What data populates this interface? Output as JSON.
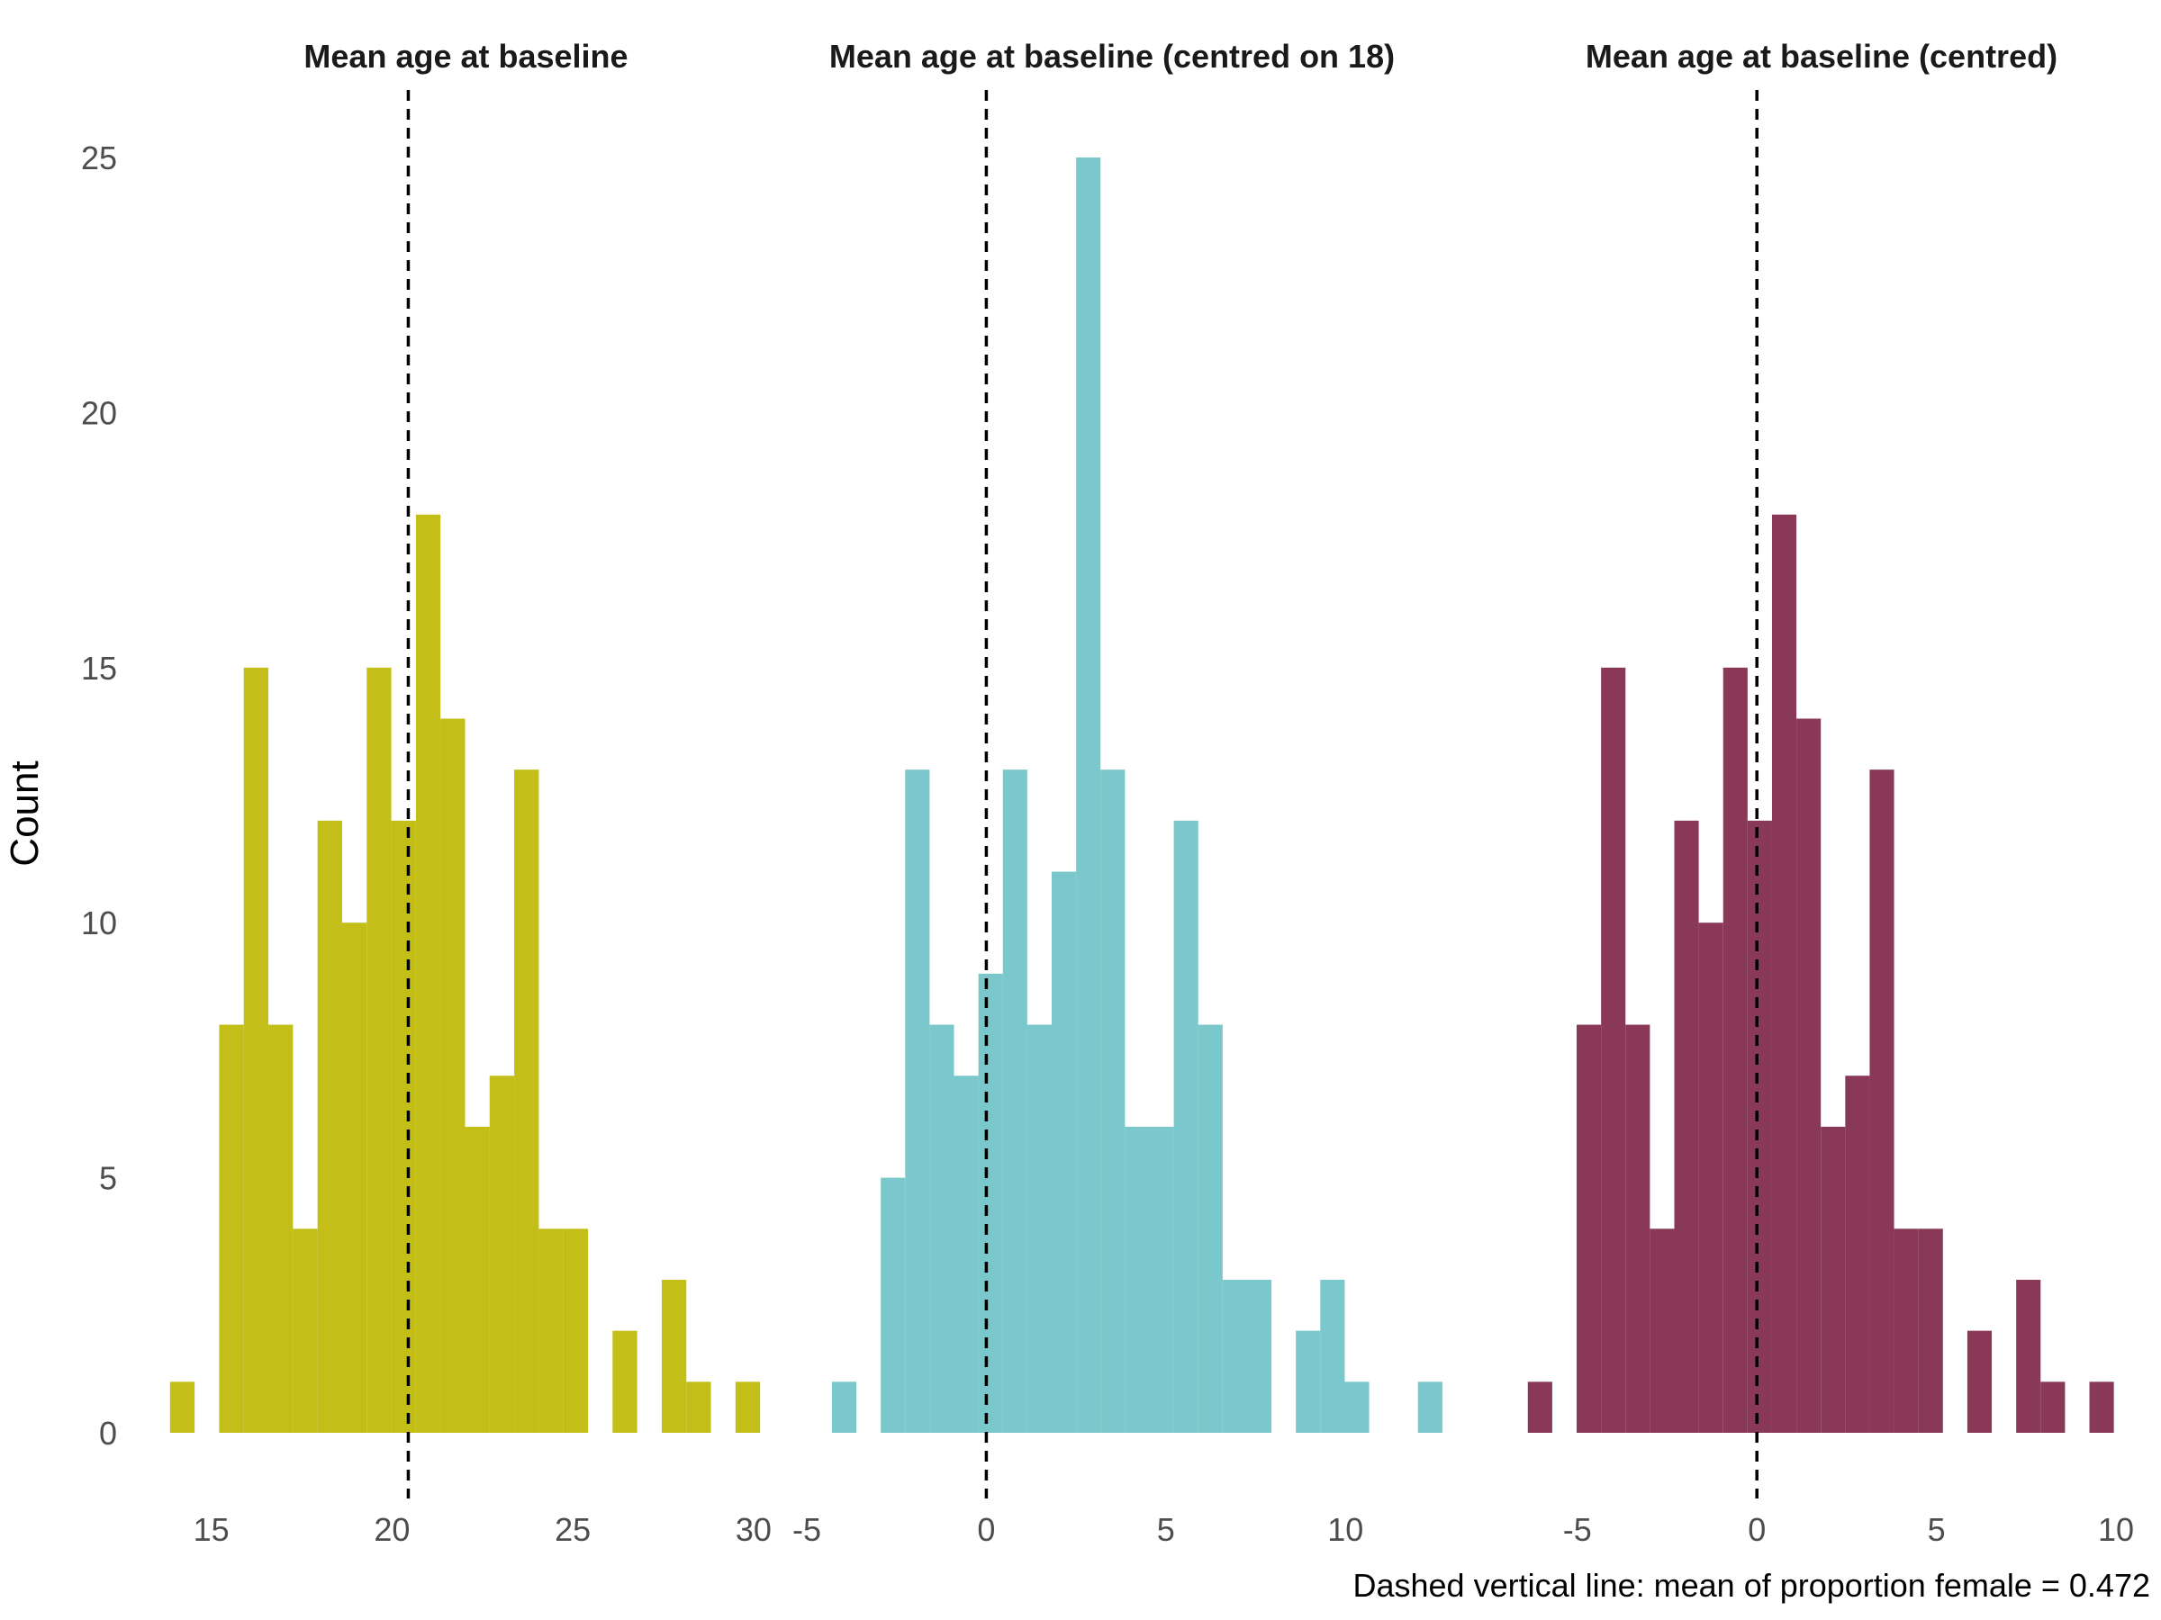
{
  "chart_data": {
    "type": "histogram",
    "ylabel": "Count",
    "y_ticks": [
      0,
      5,
      10,
      15,
      20,
      25
    ],
    "ylim": [
      0,
      25
    ],
    "caption": "Dashed vertical line: mean of proportion female = 0.472",
    "grid": false,
    "panels": [
      {
        "title": "Mean age at baseline",
        "color": "#C4BE18",
        "xlim": [
          13.64,
          30.45
        ],
        "x_ticks": [
          15,
          20,
          25,
          30
        ],
        "bin_width": 0.68,
        "bin_start": 13.86,
        "counts": [
          1,
          0,
          8,
          15,
          8,
          4,
          12,
          10,
          15,
          12,
          18,
          14,
          6,
          7,
          13,
          4,
          4,
          0,
          2,
          0,
          3,
          1,
          0,
          1
        ],
        "mean": 20.45
      },
      {
        "title": "Mean age at baseline (centred on 18)",
        "color": "#7AC7CC",
        "xlim": [
          -4.9,
          11.9
        ],
        "x_ticks": [
          -5,
          0,
          5,
          10
        ],
        "x_tick_labels": [
          "-5",
          "0",
          "5",
          "10"
        ],
        "bin_width": 0.68,
        "bin_start": -4.3,
        "counts": [
          1,
          0,
          5,
          13,
          8,
          7,
          9,
          13,
          8,
          11,
          25,
          13,
          6,
          6,
          12,
          8,
          3,
          3,
          0,
          2,
          3,
          1,
          0,
          0,
          1
        ],
        "mean": 0
      },
      {
        "title": "Mean age at baseline (centred)",
        "color": "#8A3858",
        "xlim": [
          -6.6,
          10.2
        ],
        "x_ticks": [
          -5,
          0,
          5,
          10
        ],
        "x_tick_labels": [
          "-5",
          "0",
          "5",
          "10"
        ],
        "bin_width": 0.68,
        "bin_start": -6.38,
        "counts": [
          1,
          0,
          8,
          15,
          8,
          4,
          12,
          10,
          15,
          12,
          18,
          14,
          6,
          7,
          13,
          4,
          4,
          0,
          2,
          0,
          3,
          1,
          0,
          1
        ],
        "mean": 0
      }
    ]
  }
}
